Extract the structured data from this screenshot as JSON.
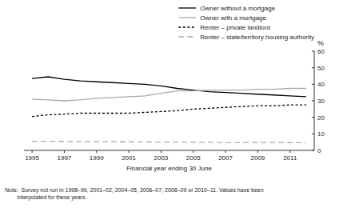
{
  "chart_data": {
    "type": "line",
    "x": [
      1995,
      1996,
      1997,
      1998,
      1999,
      2000,
      2001,
      2002,
      2003,
      2004,
      2005,
      2006,
      2007,
      2008,
      2009,
      2010,
      2011,
      2012
    ],
    "series": [
      {
        "name": "Owner without a mortgage",
        "color": "#000000",
        "line_style": "solid",
        "values": [
          43.5,
          44.5,
          43.0,
          42.0,
          41.5,
          41.0,
          40.5,
          40.0,
          39.0,
          37.5,
          36.5,
          35.5,
          35.0,
          34.5,
          34.0,
          33.5,
          33.0,
          32.5
        ]
      },
      {
        "name": "Owner with a mortgage",
        "color": "#aaaaaa",
        "line_style": "solid",
        "values": [
          31.0,
          30.5,
          30.0,
          30.5,
          31.5,
          32.0,
          32.5,
          33.0,
          34.5,
          36.0,
          36.0,
          36.5,
          36.5,
          36.5,
          37.0,
          37.0,
          37.5,
          37.5
        ]
      },
      {
        "name": "Renter – private landlord",
        "color": "#000000",
        "line_style": "dashed",
        "values": [
          20.5,
          21.5,
          22.0,
          22.5,
          22.5,
          22.5,
          22.5,
          23.0,
          23.5,
          24.0,
          25.0,
          25.5,
          26.0,
          26.5,
          27.0,
          27.0,
          27.5,
          27.5
        ]
      },
      {
        "name": "Renter – state/territory housing authority",
        "color": "#aaaaaa",
        "line_style": "longdash",
        "values": [
          5.5,
          5.5,
          5.4,
          5.4,
          5.3,
          5.2,
          5.2,
          5.1,
          5.0,
          5.0,
          4.9,
          4.9,
          4.8,
          4.8,
          4.8,
          4.8,
          4.7,
          4.7
        ]
      }
    ],
    "xlim": [
      1994.5,
      2012.5
    ],
    "xticks": [
      1995,
      1997,
      1999,
      2001,
      2003,
      2005,
      2007,
      2009,
      2011
    ],
    "ylim": [
      0,
      60
    ],
    "yticks": [
      0,
      10,
      20,
      30,
      40,
      50,
      60
    ],
    "xlabel": "Financial year ending 30 June",
    "ylabel": "%",
    "annotations": [
      "Note:  Survey not run in 1998–99, 2001–02, 2004–05, 2006–07, 2008–09 or 2010–11. Values have been",
      "        interpolated for these years."
    ],
    "legend": "upper right",
    "grid": false
  }
}
